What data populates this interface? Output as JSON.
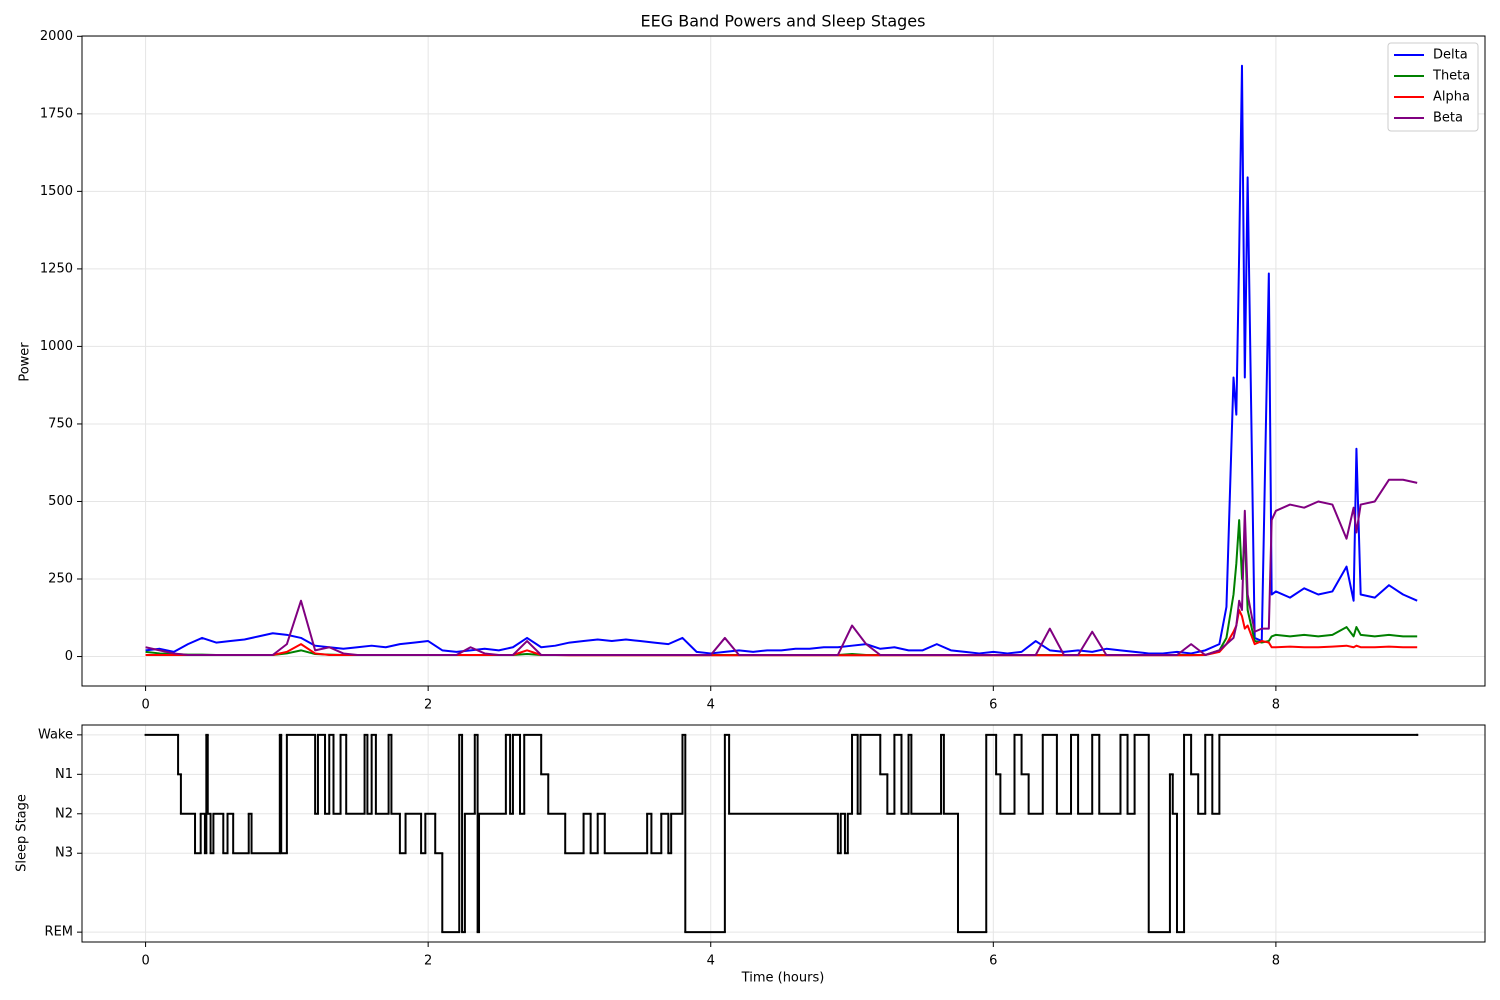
{
  "chart_data": [
    {
      "type": "line",
      "title": "EEG Band Powers and Sleep Stages",
      "ylabel": "Power",
      "x": [
        0,
        0.1,
        0.2,
        0.3,
        0.4,
        0.5,
        0.6,
        0.7,
        0.8,
        0.9,
        1.0,
        1.1,
        1.2,
        1.3,
        1.4,
        1.5,
        1.6,
        1.7,
        1.8,
        1.9,
        2.0,
        2.1,
        2.2,
        2.3,
        2.4,
        2.5,
        2.6,
        2.7,
        2.8,
        2.9,
        3.0,
        3.1,
        3.2,
        3.3,
        3.4,
        3.5,
        3.6,
        3.7,
        3.8,
        3.9,
        4.0,
        4.1,
        4.2,
        4.3,
        4.4,
        4.5,
        4.6,
        4.7,
        4.8,
        4.9,
        5.0,
        5.1,
        5.2,
        5.3,
        5.4,
        5.5,
        5.6,
        5.7,
        5.8,
        5.9,
        6.0,
        6.1,
        6.2,
        6.3,
        6.4,
        6.5,
        6.6,
        6.7,
        6.8,
        6.9,
        7.0,
        7.1,
        7.2,
        7.3,
        7.4,
        7.5,
        7.6,
        7.65,
        7.7,
        7.72,
        7.74,
        7.76,
        7.78,
        7.8,
        7.85,
        7.9,
        7.95,
        7.97,
        8.0,
        8.1,
        8.2,
        8.3,
        8.4,
        8.5,
        8.55,
        8.57,
        8.6,
        8.7,
        8.8,
        8.9,
        9.0
      ],
      "series": [
        {
          "name": "Delta",
          "color": "#0000ff",
          "values": [
            20,
            25,
            15,
            40,
            60,
            45,
            50,
            55,
            65,
            75,
            70,
            60,
            35,
            30,
            25,
            30,
            35,
            30,
            40,
            45,
            50,
            20,
            15,
            20,
            25,
            20,
            30,
            60,
            30,
            35,
            45,
            50,
            55,
            50,
            55,
            50,
            45,
            40,
            60,
            15,
            10,
            15,
            20,
            15,
            20,
            20,
            25,
            25,
            30,
            30,
            35,
            40,
            25,
            30,
            20,
            20,
            40,
            20,
            15,
            10,
            15,
            10,
            15,
            50,
            20,
            15,
            20,
            15,
            25,
            20,
            15,
            10,
            10,
            15,
            10,
            20,
            40,
            160,
            900,
            780,
            1300,
            1905,
            900,
            1545,
            60,
            50,
            1235,
            200,
            210,
            190,
            220,
            200,
            210,
            290,
            180,
            670,
            200,
            190,
            230,
            200,
            180
          ]
        },
        {
          "name": "Theta",
          "color": "#008000",
          "values": [
            15,
            10,
            8,
            6,
            6,
            5,
            5,
            5,
            5,
            5,
            10,
            20,
            8,
            6,
            5,
            5,
            5,
            5,
            5,
            5,
            5,
            5,
            5,
            5,
            5,
            5,
            5,
            8,
            5,
            5,
            5,
            5,
            5,
            5,
            5,
            5,
            5,
            5,
            5,
            5,
            5,
            5,
            5,
            5,
            5,
            5,
            5,
            5,
            5,
            5,
            8,
            5,
            5,
            5,
            5,
            5,
            5,
            5,
            5,
            5,
            5,
            5,
            5,
            5,
            5,
            5,
            5,
            5,
            5,
            5,
            5,
            5,
            5,
            5,
            5,
            5,
            20,
            60,
            200,
            300,
            440,
            250,
            400,
            150,
            50,
            45,
            50,
            65,
            70,
            65,
            70,
            65,
            70,
            95,
            65,
            95,
            70,
            65,
            70,
            65,
            65
          ]
        },
        {
          "name": "Alpha",
          "color": "#ff0000",
          "values": [
            5,
            5,
            5,
            5,
            5,
            5,
            5,
            5,
            5,
            5,
            15,
            40,
            10,
            5,
            5,
            5,
            5,
            5,
            5,
            5,
            5,
            5,
            5,
            5,
            5,
            5,
            5,
            20,
            5,
            5,
            4,
            4,
            4,
            4,
            4,
            4,
            4,
            4,
            4,
            4,
            4,
            4,
            4,
            4,
            4,
            4,
            4,
            4,
            4,
            4,
            4,
            4,
            4,
            4,
            4,
            4,
            4,
            4,
            4,
            4,
            4,
            4,
            4,
            4,
            4,
            4,
            4,
            4,
            4,
            4,
            4,
            4,
            4,
            4,
            4,
            5,
            15,
            40,
            80,
            100,
            150,
            130,
            90,
            100,
            40,
            50,
            45,
            30,
            30,
            32,
            30,
            30,
            32,
            35,
            30,
            35,
            30,
            30,
            32,
            30,
            30
          ]
        },
        {
          "name": "Beta",
          "color": "#800080",
          "values": [
            30,
            20,
            10,
            5,
            5,
            5,
            5,
            5,
            5,
            5,
            40,
            180,
            20,
            30,
            10,
            5,
            5,
            5,
            5,
            5,
            5,
            5,
            5,
            30,
            10,
            5,
            5,
            50,
            5,
            5,
            5,
            5,
            5,
            5,
            5,
            5,
            5,
            5,
            5,
            5,
            5,
            60,
            5,
            5,
            5,
            5,
            5,
            5,
            5,
            5,
            100,
            40,
            5,
            5,
            5,
            5,
            5,
            5,
            5,
            5,
            5,
            5,
            5,
            5,
            90,
            5,
            5,
            80,
            5,
            5,
            5,
            5,
            5,
            5,
            40,
            5,
            20,
            40,
            60,
            100,
            180,
            150,
            470,
            200,
            80,
            90,
            90,
            440,
            470,
            490,
            480,
            500,
            490,
            380,
            480,
            400,
            490,
            500,
            570,
            570,
            560
          ]
        }
      ],
      "xlim": [
        -0.45,
        9.48
      ],
      "ylim": [
        -95,
        2001
      ],
      "xticks": [
        0,
        2,
        4,
        6,
        8
      ],
      "yticks": [
        0,
        250,
        500,
        750,
        1000,
        1250,
        1500,
        1750,
        2000
      ],
      "grid": true,
      "legend": "upper right"
    },
    {
      "type": "step",
      "ylabel": "Sleep Stage",
      "xlabel": "Time (hours)",
      "color": "#000000",
      "x": [
        0,
        0.23,
        0.25,
        0.35,
        0.39,
        0.42,
        0.43,
        0.44,
        0.46,
        0.48,
        0.55,
        0.58,
        0.62,
        0.73,
        0.75,
        0.95,
        0.96,
        1.0,
        1.2,
        1.22,
        1.27,
        1.3,
        1.33,
        1.38,
        1.42,
        1.55,
        1.57,
        1.6,
        1.63,
        1.72,
        1.74,
        1.8,
        1.84,
        1.95,
        1.98,
        2.05,
        2.1,
        2.22,
        2.24,
        2.26,
        2.33,
        2.35,
        2.36,
        2.55,
        2.58,
        2.6,
        2.65,
        2.68,
        2.8,
        2.85,
        2.97,
        3.1,
        3.15,
        3.2,
        3.25,
        3.55,
        3.58,
        3.65,
        3.7,
        3.72,
        3.8,
        3.82,
        4.1,
        4.13,
        4.9,
        4.92,
        4.95,
        4.97,
        5.0,
        5.04,
        5.06,
        5.2,
        5.25,
        5.3,
        5.35,
        5.4,
        5.42,
        5.63,
        5.65,
        5.75,
        5.95,
        6.02,
        6.05,
        6.15,
        6.2,
        6.25,
        6.35,
        6.45,
        6.55,
        6.6,
        6.7,
        6.75,
        6.9,
        6.95,
        7.0,
        7.1,
        7.25,
        7.27,
        7.3,
        7.35,
        7.4,
        7.45,
        7.5,
        7.55,
        7.6,
        9.0
      ],
      "values": [
        4,
        3,
        2,
        1,
        2,
        1,
        4,
        2,
        1,
        2,
        1,
        2,
        1,
        2,
        1,
        4,
        1,
        4,
        2,
        4,
        2,
        4,
        2,
        4,
        2,
        4,
        2,
        4,
        2,
        4,
        2,
        1,
        2,
        1,
        2,
        1,
        -1,
        4,
        -1,
        2,
        4,
        -1,
        2,
        4,
        2,
        4,
        2,
        4,
        3,
        2,
        1,
        2,
        1,
        2,
        1,
        2,
        1,
        2,
        1,
        2,
        4,
        -1,
        4,
        2,
        1,
        2,
        1,
        2,
        4,
        2,
        4,
        3,
        2,
        4,
        2,
        4,
        2,
        4,
        2,
        -1,
        4,
        3,
        2,
        4,
        3,
        2,
        4,
        2,
        4,
        2,
        4,
        2,
        4,
        2,
        4,
        -1,
        3,
        2,
        -1,
        4,
        3,
        2,
        4,
        2,
        4,
        4
      ],
      "xlim": [
        -0.45,
        9.48
      ],
      "ylim": [
        -1.25,
        4.25
      ],
      "xticks": [
        0,
        2,
        4,
        6,
        8
      ],
      "yticks": [
        {
          "value": 4,
          "label": "Wake"
        },
        {
          "value": 3,
          "label": "N1"
        },
        {
          "value": 2,
          "label": "N2"
        },
        {
          "value": 1,
          "label": "N3"
        },
        {
          "value": -1,
          "label": "REM"
        }
      ],
      "grid": true
    }
  ]
}
